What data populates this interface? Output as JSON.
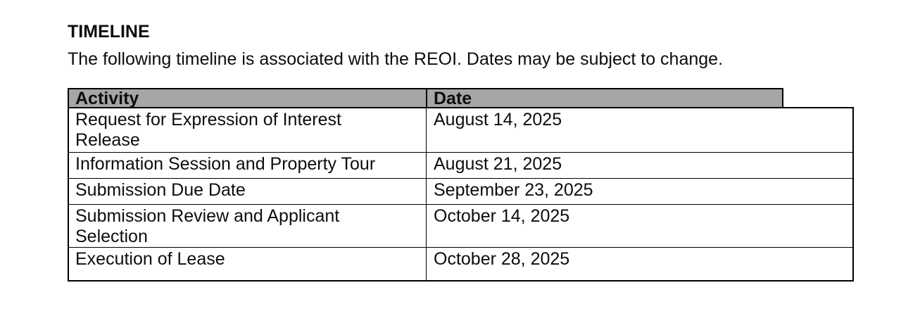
{
  "document": {
    "section_title": "TIMELINE",
    "intro": "The following timeline is associated with the REOI. Dates may be subject to change."
  },
  "timeline_table": {
    "header_bg_color": "#a6a6a6",
    "border_color": "#000000",
    "columns": [
      "Activity",
      "Date"
    ],
    "rows": [
      {
        "activity": "Request for Expression of Interest\nRelease",
        "date": "August 14, 2025"
      },
      {
        "activity": "Information Session and Property Tour",
        "date": "August 21, 2025"
      },
      {
        "activity": "Submission Due Date",
        "date": "September 23, 2025"
      },
      {
        "activity": "Submission Review and Applicant\nSelection",
        "date": "October 14, 2025"
      },
      {
        "activity": "Execution of Lease",
        "date": "October 28, 2025"
      }
    ]
  }
}
